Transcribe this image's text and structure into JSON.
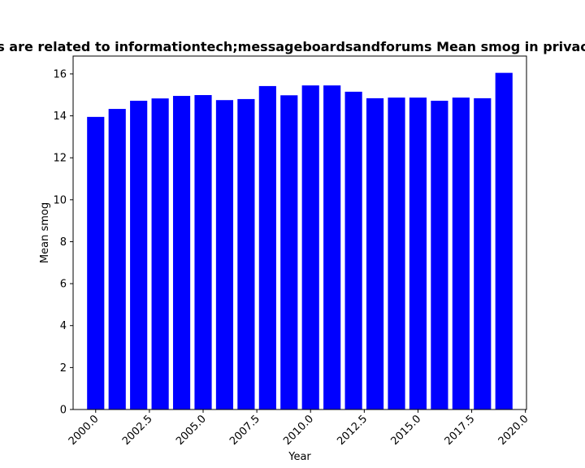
{
  "chart_data": {
    "type": "bar",
    "title": "s are related to informationtech;messageboardsandforums Mean smog in privac",
    "xlabel": "Year",
    "ylabel": "Mean smog",
    "x": [
      2000,
      2001,
      2002,
      2003,
      2004,
      2005,
      2006,
      2007,
      2008,
      2009,
      2010,
      2011,
      2012,
      2013,
      2014,
      2015,
      2016,
      2017,
      2018,
      2019
    ],
    "values": [
      13.95,
      14.33,
      14.72,
      14.83,
      14.95,
      14.99,
      14.75,
      14.8,
      15.42,
      14.98,
      15.45,
      15.45,
      15.15,
      14.84,
      14.87,
      14.87,
      14.72,
      14.87,
      14.84,
      16.05
    ],
    "xlim": [
      1998.95,
      2020.05
    ],
    "ylim": [
      0,
      16.85
    ],
    "x_ticks": [
      2000.0,
      2002.5,
      2005.0,
      2007.5,
      2010.0,
      2012.5,
      2015.0,
      2017.5,
      2020.0
    ],
    "x_tick_labels": [
      "2000.0",
      "2002.5",
      "2005.0",
      "2007.5",
      "2010.0",
      "2012.5",
      "2015.0",
      "2017.5",
      "2020.0"
    ],
    "y_ticks": [
      0,
      2,
      4,
      6,
      8,
      10,
      12,
      14,
      16
    ],
    "y_tick_labels": [
      "0",
      "2",
      "4",
      "6",
      "8",
      "10",
      "12",
      "14",
      "16"
    ],
    "bar_color": "#0000ff",
    "grid": false,
    "legend": "none"
  }
}
